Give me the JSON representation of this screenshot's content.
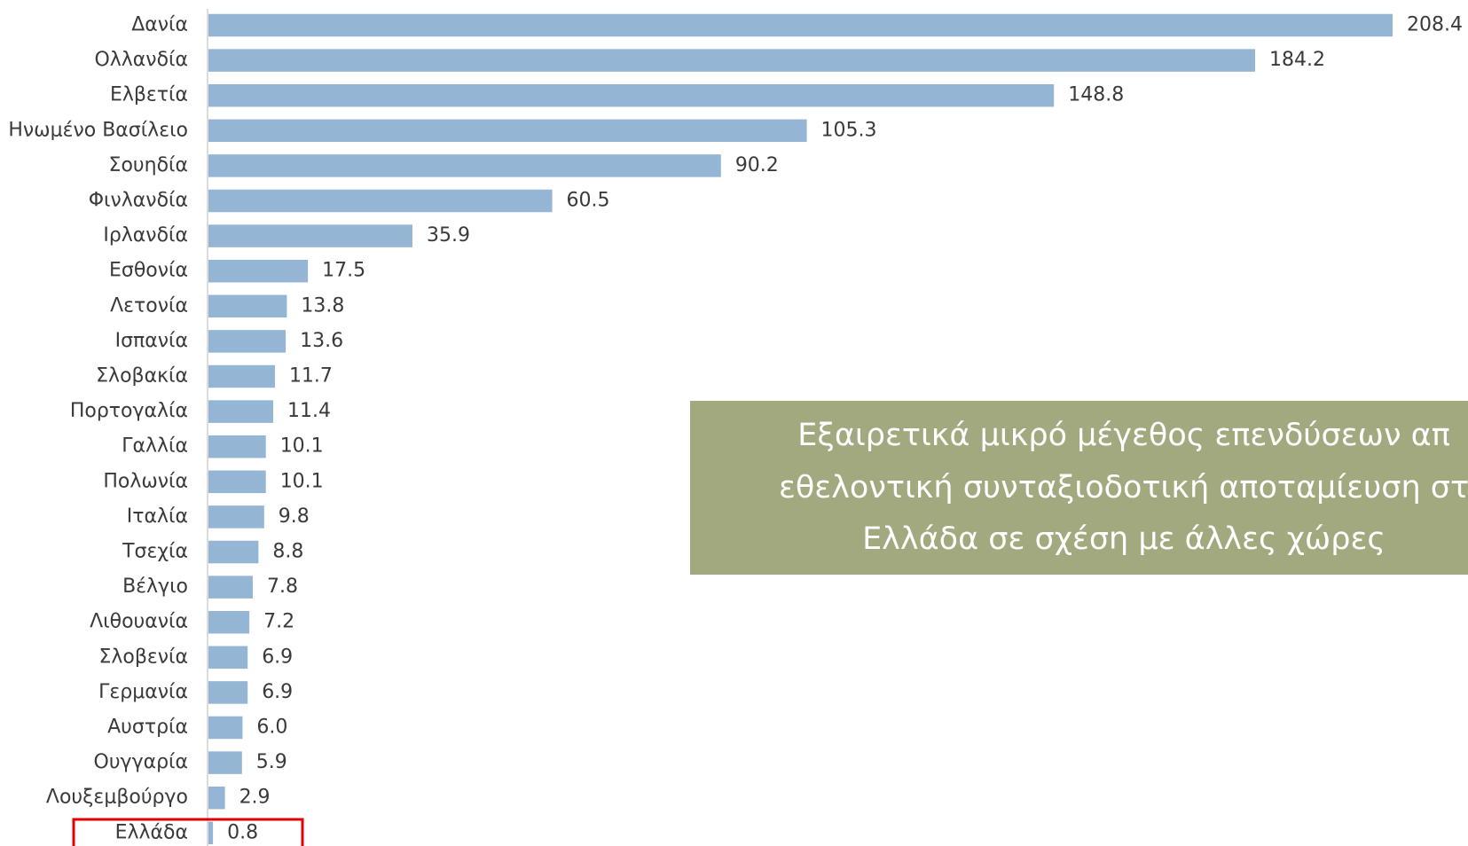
{
  "chart_data": {
    "type": "bar",
    "orientation": "horizontal",
    "color": "#95b5d4",
    "categories": [
      "Δανία",
      "Ολλανδία",
      "Ελβετία",
      "Ηνωμένο Βασίλειο",
      "Σουηδία",
      "Φινλανδία",
      "Ιρλανδία",
      "Εσθονία",
      "Λετονία",
      "Ισπανία",
      "Σλοβακία",
      "Πορτογαλία",
      "Γαλλία",
      "Πολωνία",
      "Ιταλία",
      "Τσεχία",
      "Βέλγιο",
      "Λιθουανία",
      "Σλοβενία",
      "Γερμανία",
      "Αυστρία",
      "Ουγγαρία",
      "Λουξεμβούργο",
      "Ελλάδα"
    ],
    "values": [
      208.4,
      184.2,
      148.8,
      105.3,
      90.2,
      60.5,
      35.9,
      17.5,
      13.8,
      13.6,
      11.7,
      11.4,
      10.1,
      10.1,
      9.8,
      8.8,
      7.8,
      7.2,
      6.9,
      6.9,
      6.0,
      5.9,
      2.9,
      0.8
    ],
    "value_labels": [
      "208.4",
      "184.2",
      "148.8",
      "105.3",
      "90.2",
      "60.5",
      "35.9",
      "17.5",
      "13.8",
      "13.6",
      "11.7",
      "11.4",
      "10.1",
      "10.1",
      "9.8",
      "8.8",
      "7.8",
      "7.2",
      "6.9",
      "6.9",
      "6.0",
      "5.9",
      "2.9",
      "0.8"
    ],
    "annotation": [
      "Εξαιρετικά μικρό μέγεθος επενδύσεων απ",
      "εθελοντική συνταξιοδοτική αποταμίευση στ",
      "Ελλάδα σε σχέση με άλλες χώρες"
    ]
  }
}
